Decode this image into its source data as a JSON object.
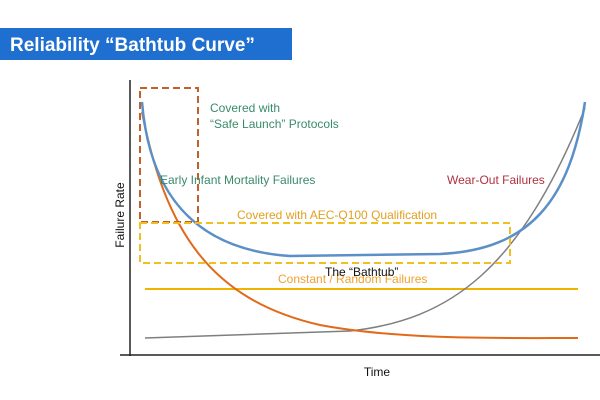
{
  "header": {
    "title": "Reliability “Bathtub Curve”"
  },
  "diagram": {
    "y_axis_label": "Failure Rate",
    "x_axis_label": "Time",
    "labels": {
      "safe_launch": [
        "Covered with",
        "“Safe Launch” Protocols"
      ],
      "infant": "Early Infant Mortality Failures",
      "wearout": "Wear-Out Failures",
      "aec": "Covered with AEC-Q100 Qualification",
      "bathtub": "The “Bathtub”",
      "random": "Constant / Random Failures"
    }
  }
}
